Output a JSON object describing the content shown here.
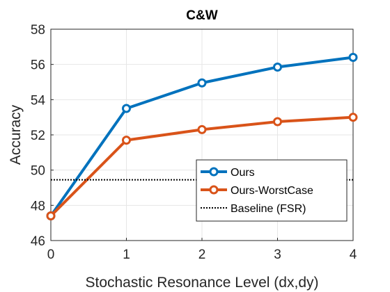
{
  "chart_data": {
    "type": "line",
    "title": "C&W",
    "xlabel": "Stochastic Resonance Level (dx,dy)",
    "ylabel": "Accuracy",
    "x": [
      0,
      1,
      2,
      3,
      4
    ],
    "xlim": [
      0,
      4
    ],
    "ylim": [
      46,
      58
    ],
    "xticks": [
      "0",
      "1",
      "2",
      "3",
      "4"
    ],
    "yticks": [
      "46",
      "48",
      "50",
      "52",
      "54",
      "56",
      "58"
    ],
    "grid": true,
    "legend_position": "bottom-right",
    "series": [
      {
        "name": "Ours",
        "values": [
          47.4,
          53.5,
          54.95,
          55.85,
          56.4
        ],
        "color": "#0072BD",
        "style": "solid-marker"
      },
      {
        "name": "Ours-WorstCase",
        "values": [
          47.4,
          51.7,
          52.3,
          52.75,
          53.0
        ],
        "color": "#D95319",
        "style": "solid-marker"
      },
      {
        "name": "Baseline (FSR)",
        "values": [
          49.45,
          49.45,
          49.45,
          49.45,
          49.45
        ],
        "color": "#000000",
        "style": "dotted"
      }
    ]
  }
}
